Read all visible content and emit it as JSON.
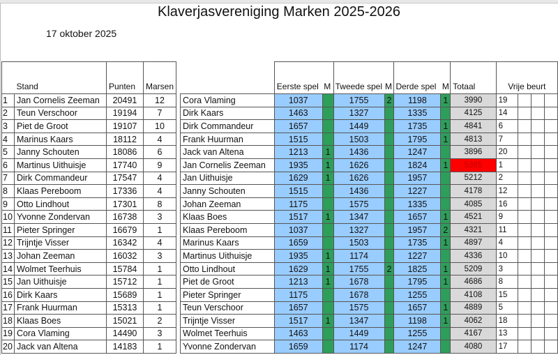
{
  "title": "Klaverjasvereniging Marken 2025-2026",
  "date": "17 oktober 2025",
  "standings": {
    "headers": {
      "stand": "Stand",
      "punten": "Punten",
      "marsen": "Marsen"
    },
    "rows": [
      {
        "rank": "1",
        "name": "Jan Cornelis Zeeman",
        "punten": "20491",
        "marsen": "12"
      },
      {
        "rank": "2",
        "name": "Teun Verschoor",
        "punten": "19194",
        "marsen": "7"
      },
      {
        "rank": "3",
        "name": "Piet de Groot",
        "punten": "19107",
        "marsen": "10"
      },
      {
        "rank": "4",
        "name": "Marinus Kaars",
        "punten": "18112",
        "marsen": "4"
      },
      {
        "rank": "5",
        "name": "Janny Schouten",
        "punten": "18086",
        "marsen": "6"
      },
      {
        "rank": "6",
        "name": "Martinus Uithuisje",
        "punten": "17740",
        "marsen": "9"
      },
      {
        "rank": "7",
        "name": "Dirk Commandeur",
        "punten": "17547",
        "marsen": "4"
      },
      {
        "rank": "8",
        "name": "Klaas Pereboom",
        "punten": "17336",
        "marsen": "4"
      },
      {
        "rank": "9",
        "name": "Otto Lindhout",
        "punten": "17301",
        "marsen": "8"
      },
      {
        "rank": "10",
        "name": "Yvonne Zondervan",
        "punten": "16738",
        "marsen": "3"
      },
      {
        "rank": "11",
        "name": "Pieter Springer",
        "punten": "16679",
        "marsen": "1"
      },
      {
        "rank": "12",
        "name": "Trijntje Visser",
        "punten": "16342",
        "marsen": "4"
      },
      {
        "rank": "13",
        "name": "Johan Zeeman",
        "punten": "16032",
        "marsen": "3"
      },
      {
        "rank": "14",
        "name": "Wolmet Teerhuis",
        "punten": "15784",
        "marsen": "1"
      },
      {
        "rank": "15",
        "name": "Jan Uithuisje",
        "punten": "15712",
        "marsen": "1"
      },
      {
        "rank": "16",
        "name": "Dirk Kaars",
        "punten": "15689",
        "marsen": "1"
      },
      {
        "rank": "17",
        "name": "Frank Huurman",
        "punten": "15313",
        "marsen": "1"
      },
      {
        "rank": "18",
        "name": "Klaas Boes",
        "punten": "15021",
        "marsen": "2"
      },
      {
        "rank": "19",
        "name": "Cora Vlaming",
        "punten": "14490",
        "marsen": "3"
      },
      {
        "rank": "20",
        "name": "Jack van Altena",
        "punten": "14183",
        "marsen": "1"
      }
    ]
  },
  "results": {
    "headers": {
      "eerste": "Eerste spel",
      "m1": "M",
      "tweede": "Tweede spel",
      "m2": "M",
      "derde": "Derde spel",
      "m3": "M",
      "totaal": "Totaal",
      "vrije": "Vrije beurt"
    },
    "highlight_color": "#ff0000",
    "rows": [
      {
        "name": "Cora Vlaming",
        "s1": "1037",
        "m1": "",
        "s2": "1755",
        "m2": "2",
        "s3": "1198",
        "m3": "1",
        "totaal": "3990",
        "vrije": "19",
        "highlight": false
      },
      {
        "name": "Dirk Kaars",
        "s1": "1463",
        "m1": "",
        "s2": "1327",
        "m2": "",
        "s3": "1335",
        "m3": "",
        "totaal": "4125",
        "vrije": "14",
        "highlight": false
      },
      {
        "name": "Dirk Commandeur",
        "s1": "1657",
        "m1": "",
        "s2": "1449",
        "m2": "",
        "s3": "1735",
        "m3": "1",
        "totaal": "4841",
        "vrije": "6",
        "highlight": false
      },
      {
        "name": "Frank Huurman",
        "s1": "1515",
        "m1": "",
        "s2": "1503",
        "m2": "",
        "s3": "1795",
        "m3": "1",
        "totaal": "4813",
        "vrije": "7",
        "highlight": false
      },
      {
        "name": "Jack van Altena",
        "s1": "1213",
        "m1": "1",
        "s2": "1436",
        "m2": "",
        "s3": "1247",
        "m3": "",
        "totaal": "3896",
        "vrije": "20",
        "highlight": false
      },
      {
        "name": "Jan Cornelis Zeeman",
        "s1": "1935",
        "m1": "1",
        "s2": "1626",
        "m2": "",
        "s3": "1824",
        "m3": "1",
        "totaal": "5385",
        "vrije": "1",
        "highlight": true
      },
      {
        "name": "Jan Uithuisje",
        "s1": "1629",
        "m1": "1",
        "s2": "1626",
        "m2": "",
        "s3": "1957",
        "m3": "",
        "totaal": "5212",
        "vrije": "2",
        "highlight": false
      },
      {
        "name": "Janny Schouten",
        "s1": "1515",
        "m1": "",
        "s2": "1436",
        "m2": "",
        "s3": "1227",
        "m3": "",
        "totaal": "4178",
        "vrije": "12",
        "highlight": false
      },
      {
        "name": "Johan Zeeman",
        "s1": "1175",
        "m1": "",
        "s2": "1575",
        "m2": "",
        "s3": "1335",
        "m3": "",
        "totaal": "4085",
        "vrije": "16",
        "highlight": false
      },
      {
        "name": "Klaas Boes",
        "s1": "1517",
        "m1": "1",
        "s2": "1347",
        "m2": "",
        "s3": "1657",
        "m3": "1",
        "totaal": "4521",
        "vrije": "9",
        "highlight": false
      },
      {
        "name": "Klaas Pereboom",
        "s1": "1037",
        "m1": "",
        "s2": "1327",
        "m2": "",
        "s3": "1957",
        "m3": "2",
        "totaal": "4321",
        "vrije": "11",
        "highlight": false
      },
      {
        "name": "Marinus Kaars",
        "s1": "1659",
        "m1": "",
        "s2": "1503",
        "m2": "",
        "s3": "1735",
        "m3": "1",
        "totaal": "4897",
        "vrije": "4",
        "highlight": false
      },
      {
        "name": "Martinus Uithuisje",
        "s1": "1935",
        "m1": "1",
        "s2": "1174",
        "m2": "",
        "s3": "1227",
        "m3": "",
        "totaal": "4336",
        "vrije": "10",
        "highlight": false
      },
      {
        "name": "Otto Lindhout",
        "s1": "1629",
        "m1": "1",
        "s2": "1755",
        "m2": "2",
        "s3": "1825",
        "m3": "1",
        "totaal": "5209",
        "vrije": "3",
        "highlight": false
      },
      {
        "name": "Piet de Groot",
        "s1": "1213",
        "m1": "1",
        "s2": "1678",
        "m2": "",
        "s3": "1795",
        "m3": "1",
        "totaal": "4686",
        "vrije": "8",
        "highlight": false
      },
      {
        "name": "Pieter Springer",
        "s1": "1175",
        "m1": "",
        "s2": "1678",
        "m2": "",
        "s3": "1255",
        "m3": "",
        "totaal": "4108",
        "vrije": "15",
        "highlight": false
      },
      {
        "name": "Teun Verschoor",
        "s1": "1657",
        "m1": "",
        "s2": "1575",
        "m2": "",
        "s3": "1657",
        "m3": "1",
        "totaal": "4889",
        "vrije": "5",
        "highlight": false
      },
      {
        "name": "Trijntje Visser",
        "s1": "1517",
        "m1": "1",
        "s2": "1347",
        "m2": "",
        "s3": "1198",
        "m3": "1",
        "totaal": "4062",
        "vrije": "18",
        "highlight": false
      },
      {
        "name": "Wolmet Teerhuis",
        "s1": "1463",
        "m1": "",
        "s2": "1449",
        "m2": "",
        "s3": "1255",
        "m3": "",
        "totaal": "4167",
        "vrije": "13",
        "highlight": false
      },
      {
        "name": "Yvonne Zondervan",
        "s1": "1659",
        "m1": "",
        "s2": "1174",
        "m2": "",
        "s3": "1247",
        "m3": "",
        "totaal": "4080",
        "vrije": "17",
        "highlight": false
      }
    ]
  }
}
